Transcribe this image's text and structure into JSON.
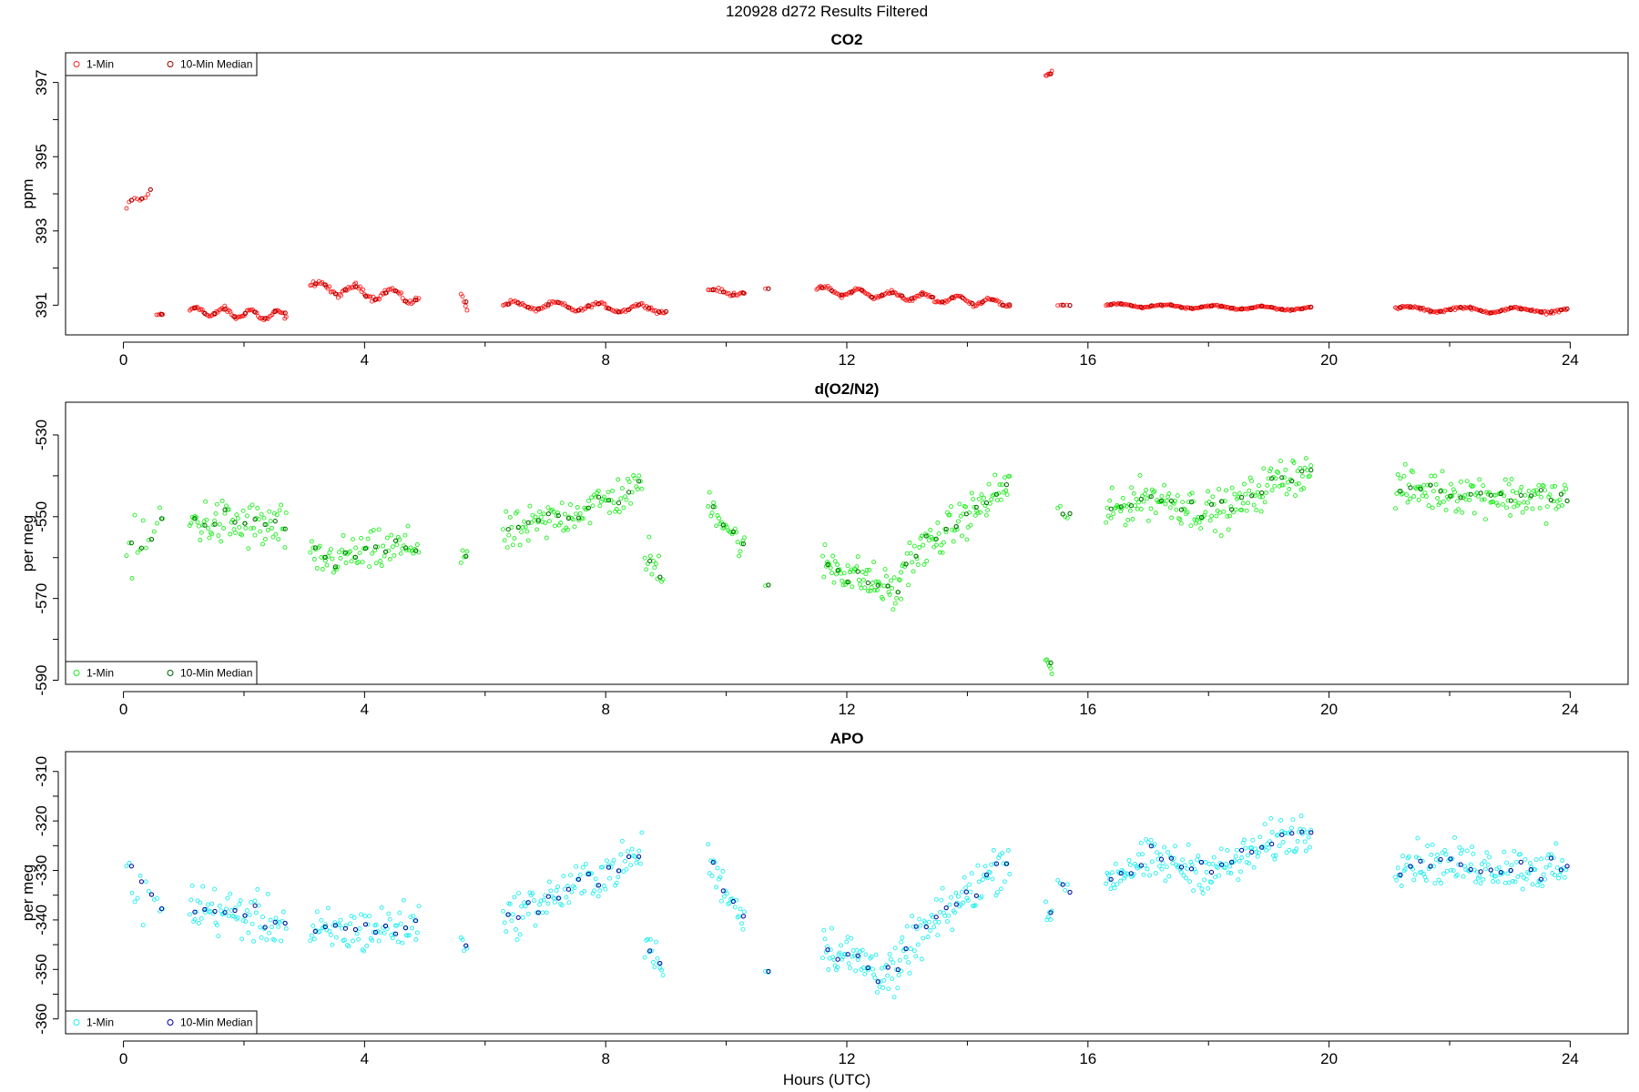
{
  "figure": {
    "title": "120928   d272   Results Filtered",
    "xlabel": "Hours (UTC)"
  },
  "chart_data": [
    {
      "type": "scatter",
      "title": "CO2",
      "ylabel": "ppm",
      "xlim": [
        -0.96,
        24.96
      ],
      "ylim": [
        390.2,
        397.8
      ],
      "xticks": [
        0,
        4,
        8,
        12,
        16,
        20,
        24
      ],
      "yticks": [
        391,
        393,
        395,
        397
      ],
      "legend": {
        "position": "top-left",
        "entries": [
          "1-Min",
          "10-Min Median"
        ]
      },
      "colors": {
        "one_min": "#ff2020",
        "median": "#990000"
      },
      "series": [
        {
          "name": "1-Min",
          "segments": [
            {
              "t0": 0.05,
              "t1": 0.45,
              "n": 10,
              "y0": 393.6,
              "y1": 394.1,
              "amp": 0.1,
              "period": 0.4,
              "noise": 0.06
            },
            {
              "t0": 0.55,
              "t1": 0.65,
              "n": 4,
              "y0": 390.75,
              "y1": 390.75,
              "amp": 0.0,
              "period": 1,
              "noise": 0.02
            },
            {
              "t0": 1.1,
              "t1": 2.7,
              "n": 70,
              "y0": 390.85,
              "y1": 390.7,
              "amp": 0.12,
              "period": 0.45,
              "noise": 0.05
            },
            {
              "t0": 3.1,
              "t1": 4.9,
              "n": 75,
              "y0": 391.5,
              "y1": 391.2,
              "amp": 0.15,
              "period": 0.6,
              "noise": 0.06
            },
            {
              "t0": 5.6,
              "t1": 5.7,
              "n": 5,
              "y0": 391.3,
              "y1": 390.9,
              "amp": 0.0,
              "period": 1,
              "noise": 0.05
            },
            {
              "t0": 6.3,
              "t1": 9.0,
              "n": 110,
              "y0": 391.0,
              "y1": 390.9,
              "amp": 0.1,
              "period": 0.7,
              "noise": 0.04
            },
            {
              "t0": 9.7,
              "t1": 10.3,
              "n": 22,
              "y0": 391.4,
              "y1": 391.3,
              "amp": 0.05,
              "period": 0.5,
              "noise": 0.04
            },
            {
              "t0": 10.65,
              "t1": 10.7,
              "n": 2,
              "y0": 391.45,
              "y1": 391.45,
              "amp": 0.0,
              "period": 1,
              "noise": 0.01
            },
            {
              "t0": 11.5,
              "t1": 14.7,
              "n": 140,
              "y0": 391.4,
              "y1": 391.05,
              "amp": 0.1,
              "period": 0.55,
              "noise": 0.04
            },
            {
              "t0": 15.3,
              "t1": 15.4,
              "n": 6,
              "y0": 397.2,
              "y1": 397.3,
              "amp": 0.0,
              "period": 1,
              "noise": 0.08
            },
            {
              "t0": 15.5,
              "t1": 15.7,
              "n": 5,
              "y0": 391.0,
              "y1": 391.0,
              "amp": 0.0,
              "period": 1,
              "noise": 0.01
            },
            {
              "t0": 16.3,
              "t1": 19.7,
              "n": 150,
              "y0": 391.0,
              "y1": 390.9,
              "amp": 0.04,
              "period": 0.8,
              "noise": 0.02
            },
            {
              "t0": 21.1,
              "t1": 23.95,
              "n": 125,
              "y0": 390.9,
              "y1": 390.85,
              "amp": 0.06,
              "period": 0.9,
              "noise": 0.03
            }
          ]
        }
      ]
    },
    {
      "type": "scatter",
      "title": "d(O2/N2)",
      "ylabel": "per meg",
      "xlim": [
        -0.96,
        24.96
      ],
      "ylim": [
        -591,
        -522
      ],
      "xticks": [
        0,
        4,
        8,
        12,
        16,
        20,
        24
      ],
      "yticks": [
        -590,
        -570,
        -550,
        -530
      ],
      "legend": {
        "position": "bottom-left",
        "entries": [
          "1-Min",
          "10-Min Median"
        ]
      },
      "colors": {
        "one_min": "#22ee22",
        "median": "#006600"
      },
      "series": [
        {
          "name": "1-Min",
          "segments": [
            {
              "t0": 0.05,
              "t1": 0.65,
              "n": 14,
              "y0": -561,
              "y1": -552,
              "amp": 0,
              "period": 1,
              "noise": 6
            },
            {
              "t0": 1.1,
              "t1": 2.7,
              "n": 75,
              "y0": -551,
              "y1": -553,
              "amp": 0,
              "period": 1,
              "noise": 5
            },
            {
              "t0": 3.1,
              "t1": 4.9,
              "n": 80,
              "y0": -561,
              "y1": -557,
              "amp": 0,
              "period": 1,
              "noise": 4
            },
            {
              "t0": 5.6,
              "t1": 5.7,
              "n": 5,
              "y0": -559,
              "y1": -559,
              "amp": 0,
              "period": 1,
              "noise": 3
            },
            {
              "t0": 6.3,
              "t1": 8.6,
              "n": 100,
              "y0": -555,
              "y1": -543,
              "amp": 0,
              "period": 1,
              "noise": 4
            },
            {
              "t0": 8.65,
              "t1": 8.95,
              "n": 14,
              "y0": -558,
              "y1": -566,
              "amp": 0,
              "period": 1,
              "noise": 4
            },
            {
              "t0": 9.7,
              "t1": 10.3,
              "n": 28,
              "y0": -546,
              "y1": -558,
              "amp": 0,
              "period": 1,
              "noise": 3
            },
            {
              "t0": 10.65,
              "t1": 10.7,
              "n": 2,
              "y0": -567,
              "y1": -567,
              "amp": 0,
              "period": 1,
              "noise": 0.5
            },
            {
              "t0": 11.6,
              "t1": 12.9,
              "n": 70,
              "y0": -561,
              "y1": -569,
              "amp": 0,
              "period": 1,
              "noise": 4
            },
            {
              "t0": 12.9,
              "t1": 14.7,
              "n": 90,
              "y0": -562,
              "y1": -542,
              "amp": 0,
              "period": 1,
              "noise": 4
            },
            {
              "t0": 15.3,
              "t1": 15.4,
              "n": 6,
              "y0": -584,
              "y1": -589,
              "amp": 0,
              "period": 1,
              "noise": 1.5
            },
            {
              "t0": 15.5,
              "t1": 15.7,
              "n": 6,
              "y0": -549,
              "y1": -549,
              "amp": 0,
              "period": 1,
              "noise": 2
            },
            {
              "t0": 16.3,
              "t1": 19.7,
              "n": 170,
              "y0": -550,
              "y1": -542,
              "amp": 3,
              "period": 2.5,
              "noise": 4
            },
            {
              "t0": 21.1,
              "t1": 23.95,
              "n": 140,
              "y0": -543,
              "y1": -546,
              "amp": 0,
              "period": 1,
              "noise": 4
            }
          ]
        }
      ]
    },
    {
      "type": "scatter",
      "title": "APO",
      "ylabel": "per meg",
      "xlim": [
        -0.96,
        24.96
      ],
      "ylim": [
        -363,
        -306
      ],
      "xticks": [
        0,
        4,
        8,
        12,
        16,
        20,
        24
      ],
      "yticks": [
        -360,
        -350,
        -340,
        -330,
        -320,
        -310
      ],
      "legend": {
        "position": "bottom-left",
        "entries": [
          "1-Min",
          "10-Min Median"
        ]
      },
      "colors": {
        "one_min": "#22eeee",
        "median": "#000099"
      },
      "series": [
        {
          "name": "1-Min",
          "segments": [
            {
              "t0": 0.05,
              "t1": 0.65,
              "n": 14,
              "y0": -331,
              "y1": -339,
              "amp": 0,
              "period": 1,
              "noise": 5
            },
            {
              "t0": 1.1,
              "t1": 2.7,
              "n": 75,
              "y0": -337,
              "y1": -341,
              "amp": 0,
              "period": 1,
              "noise": 4
            },
            {
              "t0": 3.1,
              "t1": 4.9,
              "n": 80,
              "y0": -343,
              "y1": -341,
              "amp": 0,
              "period": 1,
              "noise": 4
            },
            {
              "t0": 5.6,
              "t1": 5.7,
              "n": 5,
              "y0": -344,
              "y1": -344,
              "amp": 0,
              "period": 1,
              "noise": 2
            },
            {
              "t0": 6.3,
              "t1": 8.6,
              "n": 100,
              "y0": -340,
              "y1": -327,
              "amp": 0,
              "period": 1,
              "noise": 3.5
            },
            {
              "t0": 8.65,
              "t1": 8.95,
              "n": 14,
              "y0": -344,
              "y1": -350,
              "amp": 0,
              "period": 1,
              "noise": 3
            },
            {
              "t0": 9.7,
              "t1": 10.3,
              "n": 28,
              "y0": -328,
              "y1": -340,
              "amp": 0,
              "period": 1,
              "noise": 3
            },
            {
              "t0": 10.65,
              "t1": 10.7,
              "n": 2,
              "y0": -350,
              "y1": -350,
              "amp": 0,
              "period": 1,
              "noise": 0.5
            },
            {
              "t0": 11.6,
              "t1": 12.9,
              "n": 70,
              "y0": -345,
              "y1": -352,
              "amp": 0,
              "period": 1,
              "noise": 4
            },
            {
              "t0": 12.9,
              "t1": 14.7,
              "n": 90,
              "y0": -347,
              "y1": -327,
              "amp": 0,
              "period": 1,
              "noise": 4
            },
            {
              "t0": 15.3,
              "t1": 15.4,
              "n": 6,
              "y0": -337,
              "y1": -341,
              "amp": 0,
              "period": 1,
              "noise": 2
            },
            {
              "t0": 15.5,
              "t1": 15.7,
              "n": 6,
              "y0": -333,
              "y1": -333,
              "amp": 0,
              "period": 1,
              "noise": 2
            },
            {
              "t0": 16.3,
              "t1": 19.7,
              "n": 170,
              "y0": -332,
              "y1": -324,
              "amp": 2,
              "period": 2.5,
              "noise": 3.5
            },
            {
              "t0": 21.1,
              "t1": 23.95,
              "n": 140,
              "y0": -328,
              "y1": -330,
              "amp": 0,
              "period": 1,
              "noise": 3.5
            }
          ]
        }
      ]
    }
  ]
}
